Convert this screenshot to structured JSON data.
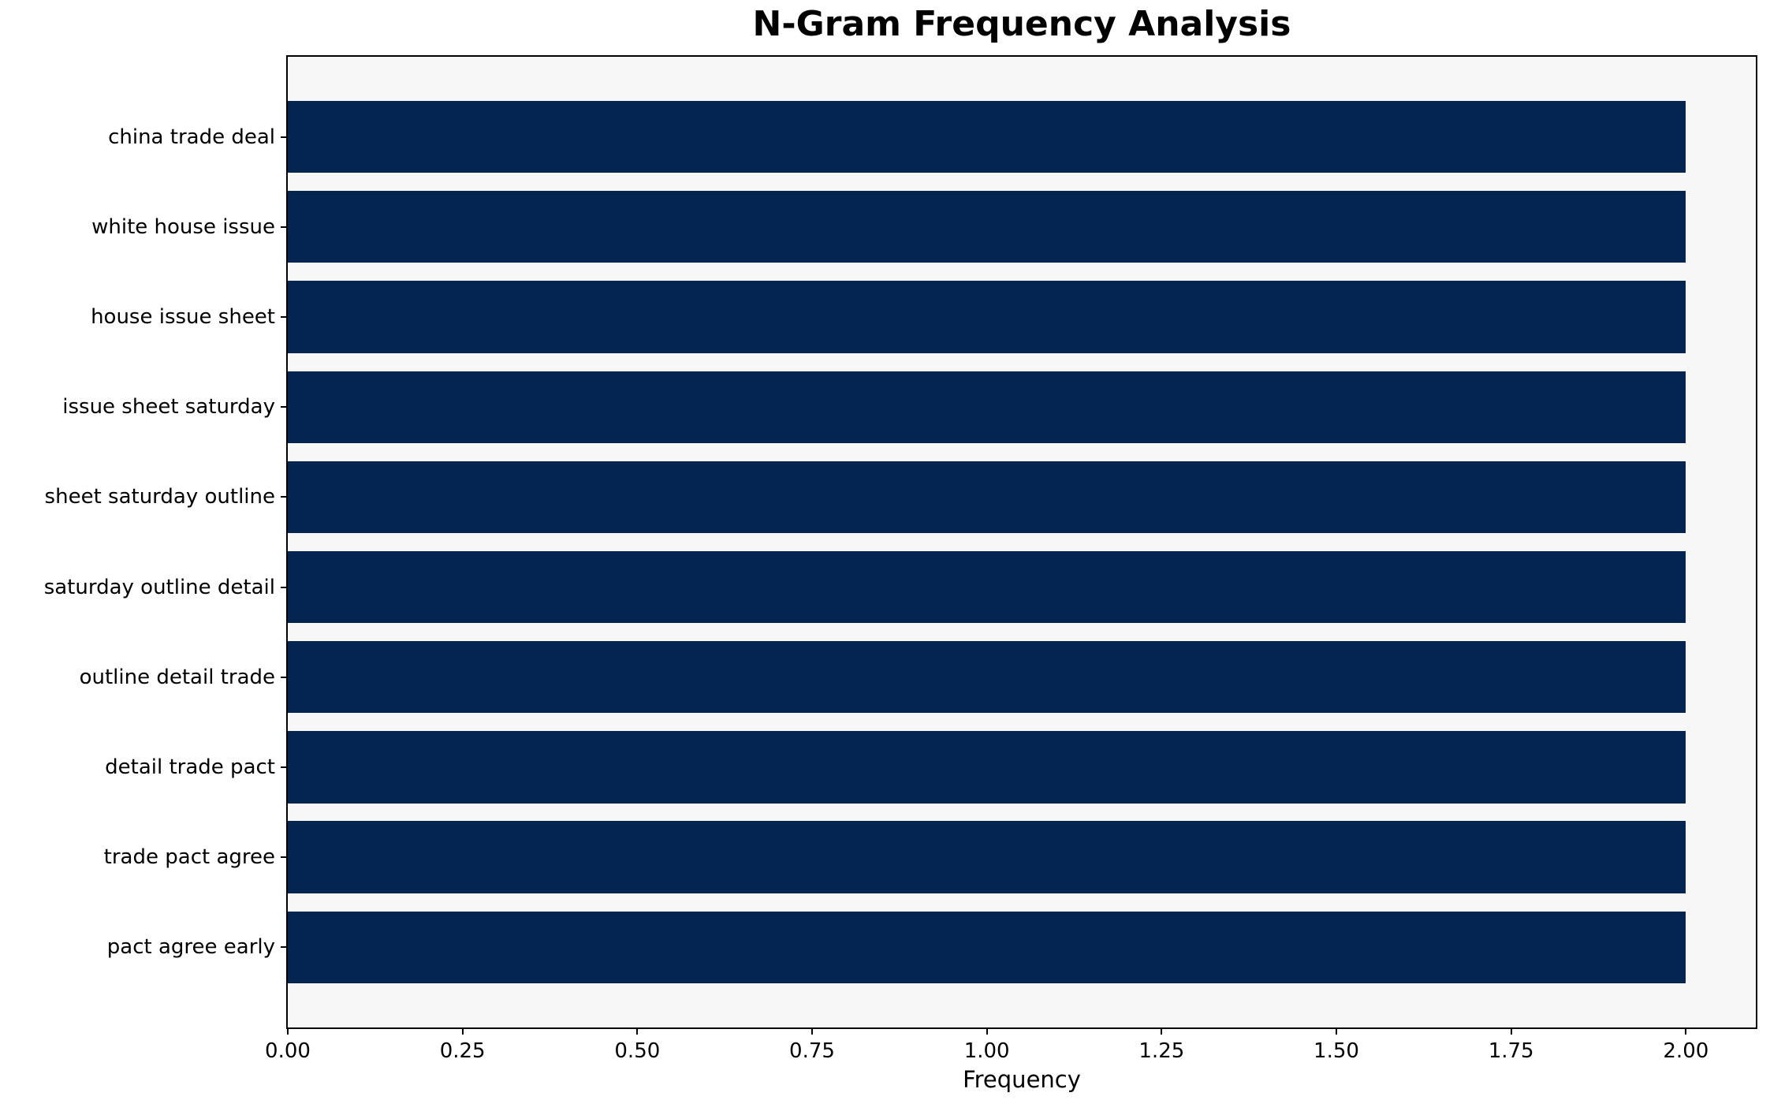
{
  "chart_data": {
    "type": "bar",
    "orientation": "horizontal",
    "title": "N-Gram Frequency Analysis",
    "xlabel": "Frequency",
    "ylabel": "",
    "categories": [
      "china trade deal",
      "white house issue",
      "house issue sheet",
      "issue sheet saturday",
      "sheet saturday outline",
      "saturday outline detail",
      "outline detail trade",
      "detail trade pact",
      "trade pact agree",
      "pact agree early"
    ],
    "values": [
      2,
      2,
      2,
      2,
      2,
      2,
      2,
      2,
      2,
      2
    ],
    "xlim": [
      0,
      2.1
    ],
    "xticks": [
      0,
      0.25,
      0.5,
      0.75,
      1.0,
      1.25,
      1.5,
      1.75,
      2.0
    ],
    "xtick_labels": [
      "0.00",
      "0.25",
      "0.50",
      "0.75",
      "1.00",
      "1.25",
      "1.50",
      "1.75",
      "2.00"
    ],
    "bar_color": "#04254f",
    "plot_background": "#f7f7f7",
    "figure_background": "#ffffff",
    "spine_color": "#000000",
    "grid": false,
    "legend_position": "none"
  }
}
